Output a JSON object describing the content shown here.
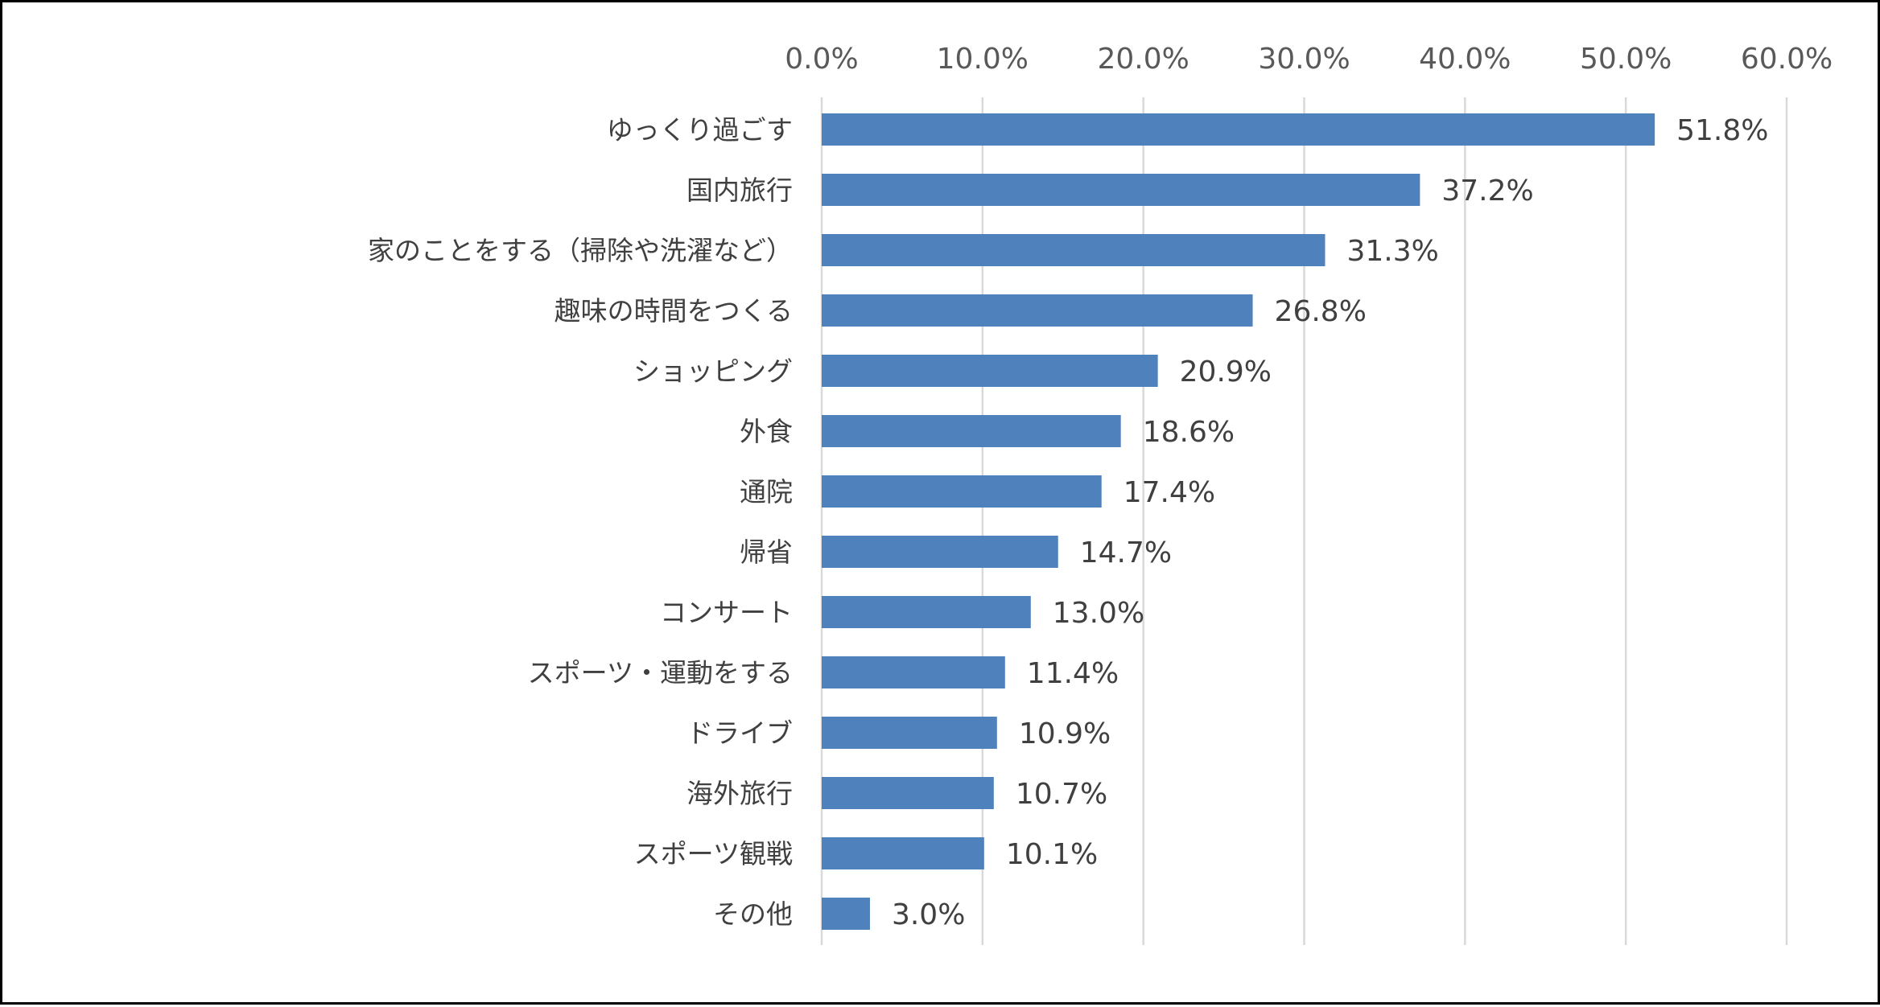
{
  "chart_data": {
    "type": "bar",
    "orientation": "horizontal",
    "categories": [
      "ゆっくり過ごす",
      "国内旅行",
      "家のことをする（掃除や洗濯など）",
      "趣味の時間をつくる",
      "ショッピング",
      "外食",
      "通院",
      "帰省",
      "コンサート",
      "スポーツ・運動をする",
      "ドライブ",
      "海外旅行",
      "スポーツ観戦",
      "その他"
    ],
    "values": [
      51.8,
      37.2,
      31.3,
      26.8,
      20.9,
      18.6,
      17.4,
      14.7,
      13.0,
      11.4,
      10.9,
      10.7,
      10.1,
      3.0
    ],
    "data_labels": [
      "51.8%",
      "37.2%",
      "31.3%",
      "26.8%",
      "20.9%",
      "18.6%",
      "17.4%",
      "14.7%",
      "13.0%",
      "11.4%",
      "10.9%",
      "10.7%",
      "10.1%",
      "3.0%"
    ],
    "xlim": [
      0,
      60
    ],
    "x_ticks": [
      0,
      10,
      20,
      30,
      40,
      50,
      60
    ],
    "x_tick_labels": [
      "0.0%",
      "10.0%",
      "20.0%",
      "30.0%",
      "40.0%",
      "50.0%",
      "60.0%"
    ],
    "x_axis_position": "top",
    "grid": true,
    "legend": "none",
    "title": "",
    "xlabel": "",
    "ylabel": "",
    "bar_color": "#4f81bd",
    "grid_color": "#d9d9d9"
  }
}
